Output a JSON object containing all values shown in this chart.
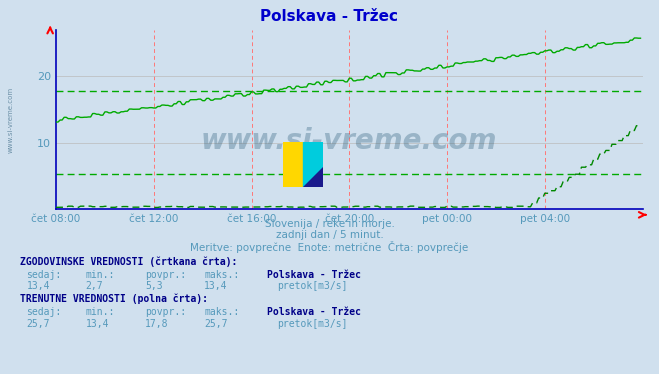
{
  "title": "Polskava - Tržec",
  "title_color": "#0000cc",
  "bg_color": "#d0e0ee",
  "plot_bg_color": "#d0e0ee",
  "x_label_color": "#5599bb",
  "y_label_color": "#5599bb",
  "axis_color": "#0000bb",
  "grid_v_color": "#ff7777",
  "grid_h_color": "#bbbbbb",
  "line_solid_color": "#00aa00",
  "line_dash_color": "#008800",
  "hline_color": "#00aa00",
  "xlim": [
    0,
    288
  ],
  "ylim": [
    0,
    27
  ],
  "yticks": [
    10,
    20
  ],
  "xtick_labels": [
    "čet 08:00",
    "čet 12:00",
    "čet 16:00",
    "čet 20:00",
    "pet 00:00",
    "pet 04:00"
  ],
  "xtick_positions": [
    0,
    48,
    96,
    144,
    192,
    240
  ],
  "x_total_steps": 288,
  "hline1_value": 17.8,
  "hline2_value": 5.3,
  "watermark_text": "www.si-vreme.com",
  "watermark_color": "#1a4f6e",
  "watermark_alpha": 0.3,
  "subtitle1": "Slovenija / reke in morje.",
  "subtitle2": "zadnji dan / 5 minut.",
  "subtitle3": "Meritve: povprečne  Enote: metrične  Črta: povprečje",
  "footer_color": "#5599bb",
  "legend_hist_label": "ZGODOVINSKE VREDNOSTI (črtkana črta):",
  "legend_curr_label": "TRENUTNE VREDNOSTI (polna črta):",
  "legend_station": "Polskava - Tržec",
  "legend_unit": "pretok[m3/s]",
  "legend_header_color": "#000088",
  "legend_col_color": "#5599bb",
  "legend_bold_color": "#000088",
  "hist_sedaj": "13,4",
  "hist_min": "2,7",
  "hist_povpr": "5,3",
  "hist_maks": "13,4",
  "curr_sedaj": "25,7",
  "curr_min": "13,4",
  "curr_povpr": "17,8",
  "curr_maks": "25,7",
  "side_watermark": "www.si-vreme.com"
}
